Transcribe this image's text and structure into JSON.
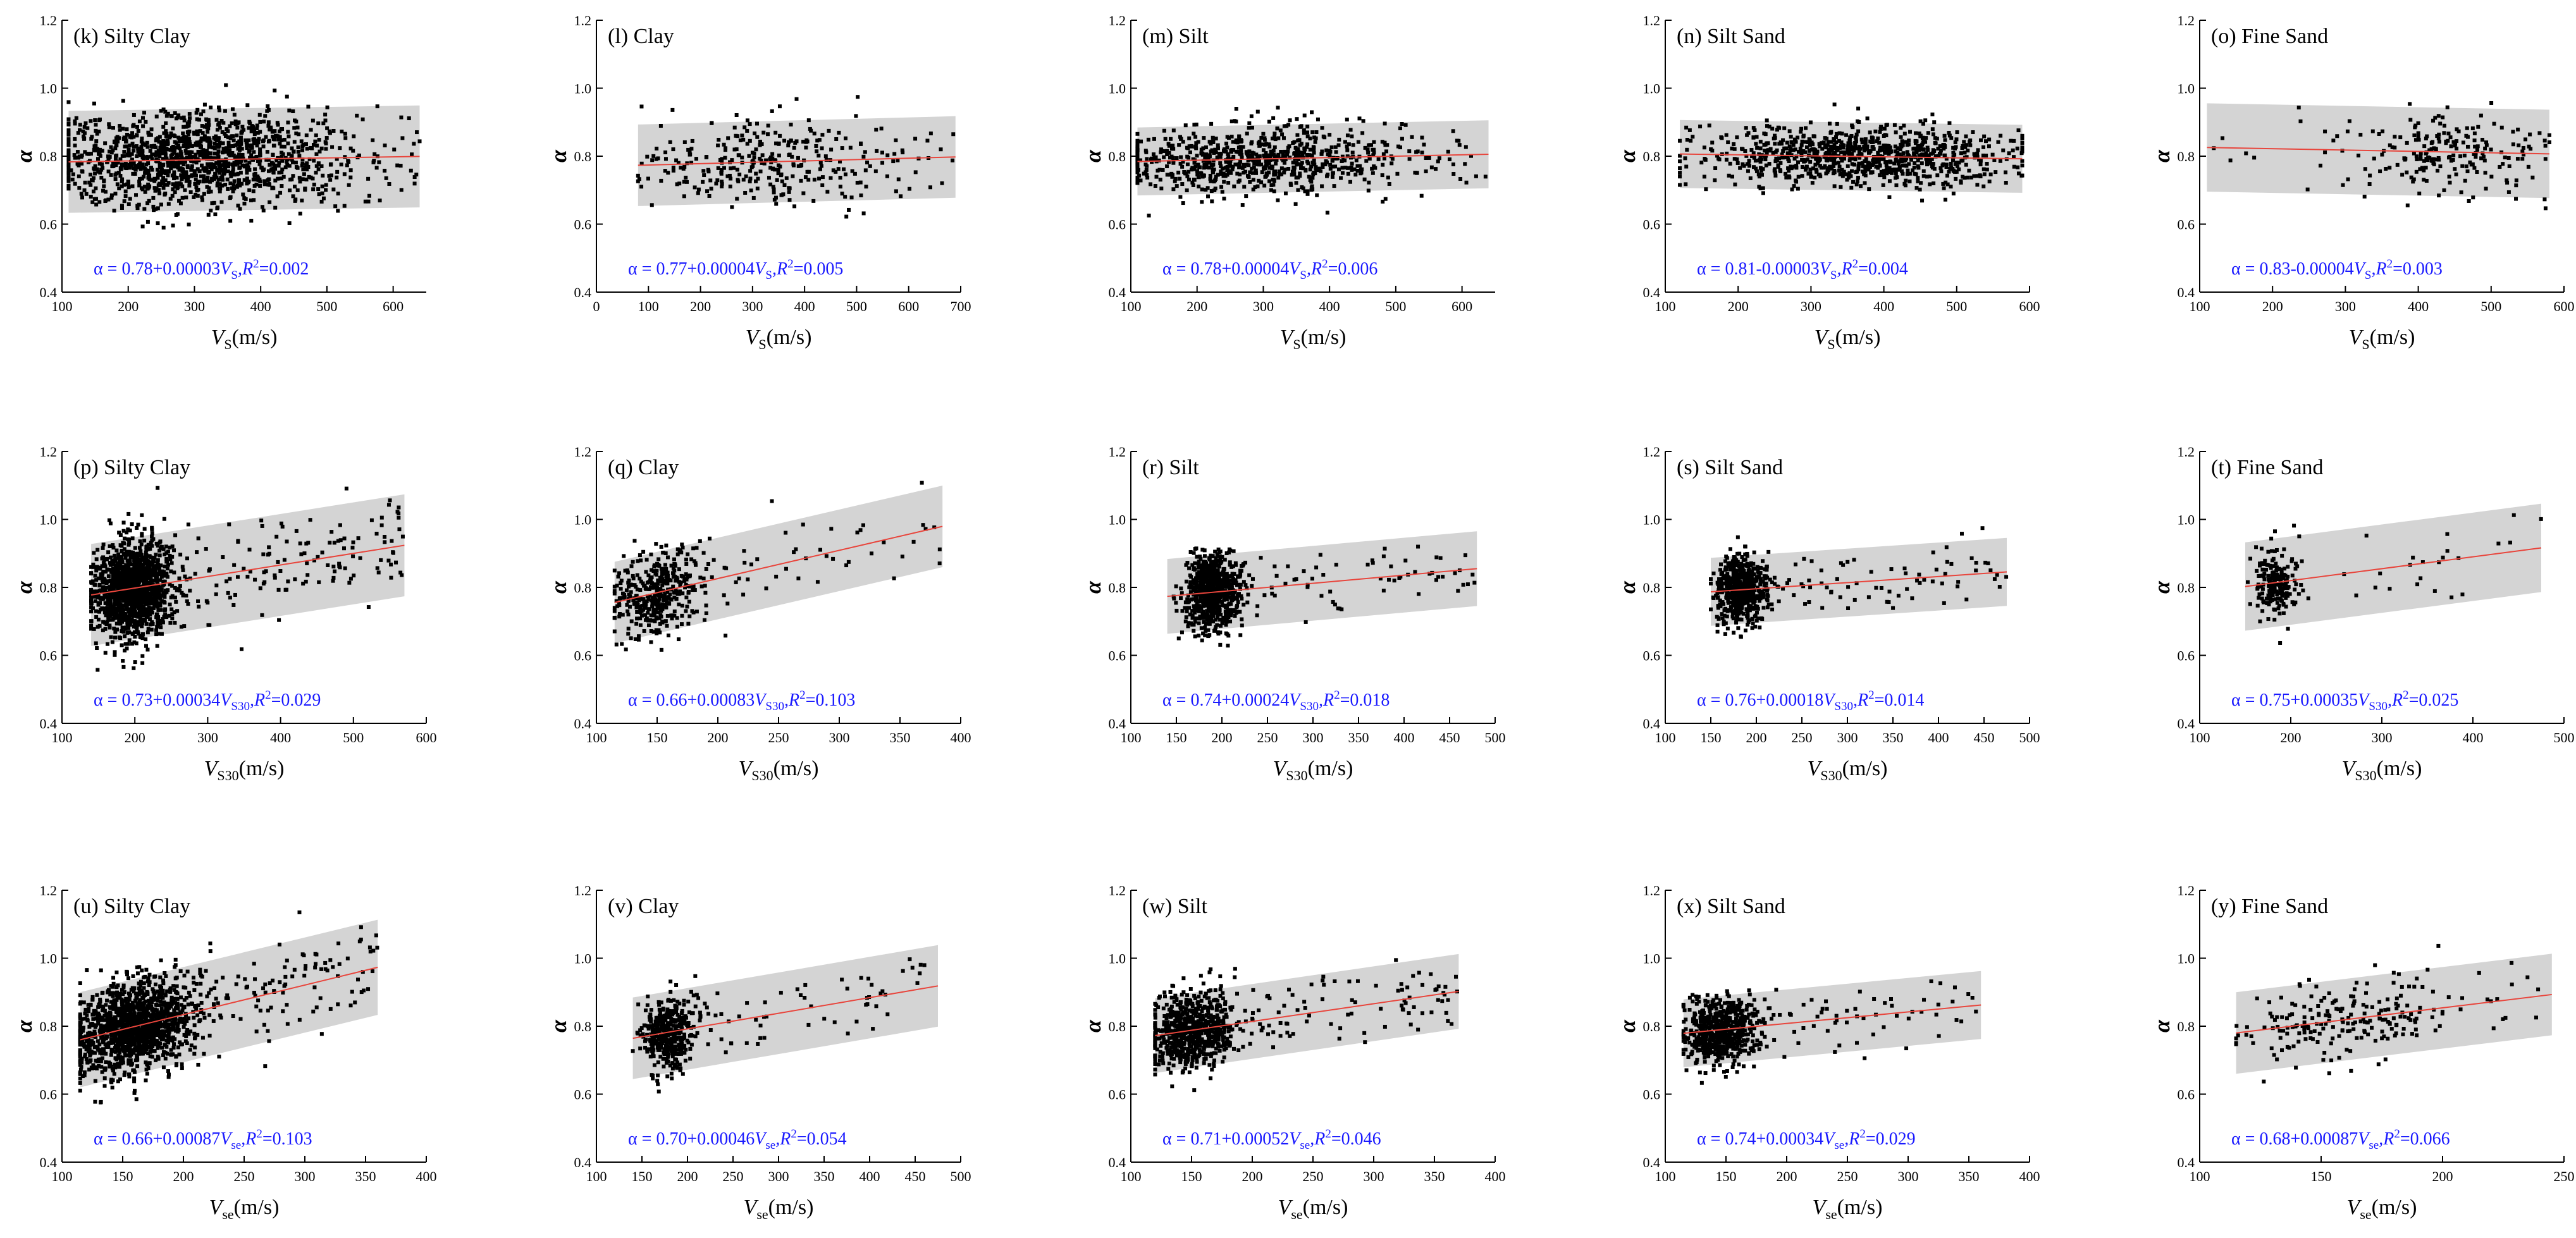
{
  "figure": {
    "ylabel": "α",
    "band_color": "#d4d4d4",
    "point_color": "#000000",
    "fit_color": "#e8453c",
    "equation_color": "#1a1aff"
  },
  "chart_data": [
    {
      "type": "scatter",
      "title": "(k) Silty Clay",
      "xlabel_main": "V",
      "xlabel_sub": "S",
      "xlabel_unit": "(m/s)",
      "xlim": [
        100,
        650
      ],
      "xticks": [
        100,
        200,
        300,
        400,
        500,
        600
      ],
      "ylim": [
        0.4,
        1.2
      ],
      "yticks": [
        0.4,
        0.6,
        0.8,
        1.0,
        1.2
      ],
      "fit": {
        "a": 0.78,
        "b": 3e-05
      },
      "band_halfwidth": 0.15,
      "x_range": [
        110,
        640
      ],
      "x_center": 300,
      "x_spread": 100,
      "n_points": 1400,
      "y_noise": 0.07,
      "equation": {
        "lead": "α = 0.78+0.00003",
        "v": "V",
        "sub": "S",
        "r": ",R",
        "sup": "2",
        "tail": "=0.002"
      }
    },
    {
      "type": "scatter",
      "title": "(l) Clay",
      "xlabel_main": "V",
      "xlabel_sub": "S",
      "xlabel_unit": "(m/s)",
      "xlim": [
        0,
        700
      ],
      "xticks": [
        0,
        100,
        200,
        300,
        400,
        500,
        600,
        700
      ],
      "ylim": [
        0.4,
        1.2
      ],
      "yticks": [
        0.4,
        0.6,
        0.8,
        1.0,
        1.2
      ],
      "fit": {
        "a": 0.77,
        "b": 4e-05
      },
      "band_halfwidth": 0.12,
      "x_range": [
        80,
        690
      ],
      "x_center": 320,
      "x_spread": 110,
      "n_points": 320,
      "y_noise": 0.06,
      "equation": {
        "lead": "α = 0.77+0.00004",
        "v": "V",
        "sub": "S",
        "r": ",R",
        "sup": "2",
        "tail": "=0.005"
      }
    },
    {
      "type": "scatter",
      "title": "(m) Silt",
      "xlabel_main": "V",
      "xlabel_sub": "S",
      "xlabel_unit": "(m/s)",
      "xlim": [
        100,
        650
      ],
      "xticks": [
        100,
        200,
        300,
        400,
        500,
        600
      ],
      "ylim": [
        0.4,
        1.2
      ],
      "yticks": [
        0.4,
        0.6,
        0.8,
        1.0,
        1.2
      ],
      "fit": {
        "a": 0.78,
        "b": 4e-05
      },
      "band_halfwidth": 0.1,
      "x_range": [
        110,
        640
      ],
      "x_center": 280,
      "x_spread": 110,
      "n_points": 800,
      "y_noise": 0.05,
      "equation": {
        "lead": "α = 0.78+0.00004",
        "v": "V",
        "sub": "S",
        "r": ",R",
        "sup": "2",
        "tail": "=0.006"
      }
    },
    {
      "type": "scatter",
      "title": "(n) Silt Sand",
      "xlabel_main": "V",
      "xlabel_sub": "S",
      "xlabel_unit": "(m/s)",
      "xlim": [
        100,
        600
      ],
      "xticks": [
        100,
        200,
        300,
        400,
        500,
        600
      ],
      "ylim": [
        0.4,
        1.2
      ],
      "yticks": [
        0.4,
        0.6,
        0.8,
        1.0,
        1.2
      ],
      "fit": {
        "a": 0.81,
        "b": -3e-05
      },
      "band_halfwidth": 0.1,
      "x_range": [
        120,
        590
      ],
      "x_center": 370,
      "x_spread": 100,
      "n_points": 900,
      "y_noise": 0.045,
      "equation": {
        "lead": "α = 0.81-0.00003",
        "v": "V",
        "sub": "S",
        "r": ",R",
        "sup": "2",
        "tail": "=0.004"
      }
    },
    {
      "type": "scatter",
      "title": "(o) Fine Sand",
      "xlabel_main": "V",
      "xlabel_sub": "S",
      "xlabel_unit": "(m/s)",
      "xlim": [
        100,
        600
      ],
      "xticks": [
        100,
        200,
        300,
        400,
        500,
        600
      ],
      "ylim": [
        0.4,
        1.2
      ],
      "yticks": [
        0.4,
        0.6,
        0.8,
        1.0,
        1.2
      ],
      "fit": {
        "a": 0.83,
        "b": -4e-05
      },
      "band_halfwidth": 0.13,
      "x_range": [
        110,
        580
      ],
      "x_center": 440,
      "x_spread": 70,
      "n_points": 220,
      "y_noise": 0.06,
      "equation": {
        "lead": "α = 0.83-0.00004",
        "v": "V",
        "sub": "S",
        "r": ",R",
        "sup": "2",
        "tail": "=0.003"
      }
    },
    {
      "type": "scatter",
      "title": "(p) Silty Clay",
      "xlabel_main": "V",
      "xlabel_sub": "S30",
      "xlabel_unit": "(m/s)",
      "xlim": [
        100,
        600
      ],
      "xticks": [
        100,
        200,
        300,
        400,
        500,
        600
      ],
      "ylim": [
        0.4,
        1.2
      ],
      "yticks": [
        0.4,
        0.6,
        0.8,
        1.0,
        1.2
      ],
      "fit": {
        "a": 0.73,
        "b": 0.00034
      },
      "band_halfwidth": 0.15,
      "x_range": [
        140,
        570
      ],
      "x_center": 195,
      "x_spread": 25,
      "n_points": 1500,
      "y_noise": 0.07,
      "equation": {
        "lead": "α = 0.73+0.00034",
        "v": "V",
        "sub": "S30",
        "r": ",R",
        "sup": "2",
        "tail": "=0.029"
      }
    },
    {
      "type": "scatter",
      "title": "(q) Clay",
      "xlabel_main": "V",
      "xlabel_sub": "S30",
      "xlabel_unit": "(m/s)",
      "xlim": [
        100,
        400
      ],
      "xticks": [
        100,
        150,
        200,
        250,
        300,
        350,
        400
      ],
      "ylim": [
        0.4,
        1.2
      ],
      "yticks": [
        0.4,
        0.6,
        0.8,
        1.0,
        1.2
      ],
      "fit": {
        "a": 0.66,
        "b": 0.00083
      },
      "band_halfwidth": 0.12,
      "x_range": [
        115,
        385
      ],
      "x_center": 150,
      "x_spread": 18,
      "n_points": 450,
      "y_noise": 0.06,
      "equation": {
        "lead": "α = 0.66+0.00083",
        "v": "V",
        "sub": "S30",
        "r": ",R",
        "sup": "2",
        "tail": "=0.103"
      }
    },
    {
      "type": "scatter",
      "title": "(r) Silt",
      "xlabel_main": "V",
      "xlabel_sub": "S30",
      "xlabel_unit": "(m/s)",
      "xlim": [
        100,
        500
      ],
      "xticks": [
        100,
        150,
        200,
        250,
        300,
        350,
        400,
        450,
        500
      ],
      "ylim": [
        0.4,
        1.2
      ],
      "yticks": [
        0.4,
        0.6,
        0.8,
        1.0,
        1.2
      ],
      "fit": {
        "a": 0.74,
        "b": 0.00024
      },
      "band_halfwidth": 0.11,
      "x_range": [
        140,
        480
      ],
      "x_center": 190,
      "x_spread": 15,
      "n_points": 800,
      "y_noise": 0.055,
      "equation": {
        "lead": "α = 0.74+0.00024",
        "v": "V",
        "sub": "S30",
        "r": ",R",
        "sup": "2",
        "tail": "=0.018"
      }
    },
    {
      "type": "scatter",
      "title": "(s) Silt Sand",
      "xlabel_main": "V",
      "xlabel_sub": "S30",
      "xlabel_unit": "(m/s)",
      "xlim": [
        100,
        500
      ],
      "xticks": [
        100,
        150,
        200,
        250,
        300,
        350,
        400,
        450,
        500
      ],
      "ylim": [
        0.4,
        1.2
      ],
      "yticks": [
        0.4,
        0.6,
        0.8,
        1.0,
        1.2
      ],
      "fit": {
        "a": 0.76,
        "b": 0.00018
      },
      "band_halfwidth": 0.1,
      "x_range": [
        150,
        475
      ],
      "x_center": 185,
      "x_spread": 15,
      "n_points": 650,
      "y_noise": 0.05,
      "equation": {
        "lead": "α = 0.76+0.00018",
        "v": "V",
        "sub": "S30",
        "r": ",R",
        "sup": "2",
        "tail": "=0.014"
      }
    },
    {
      "type": "scatter",
      "title": "(t) Fine Sand",
      "xlabel_main": "V",
      "xlabel_sub": "S30",
      "xlabel_unit": "(m/s)",
      "xlim": [
        100,
        500
      ],
      "xticks": [
        100,
        200,
        300,
        400,
        500
      ],
      "ylim": [
        0.4,
        1.2
      ],
      "yticks": [
        0.4,
        0.6,
        0.8,
        1.0,
        1.2
      ],
      "fit": {
        "a": 0.75,
        "b": 0.00035
      },
      "band_halfwidth": 0.13,
      "x_range": [
        150,
        475
      ],
      "x_center": 185,
      "x_spread": 12,
      "n_points": 220,
      "y_noise": 0.055,
      "equation": {
        "lead": "α = 0.75+0.00035",
        "v": "V",
        "sub": "S30",
        "r": ",R",
        "sup": "2",
        "tail": "=0.025"
      }
    },
    {
      "type": "scatter",
      "title": "(u) Silty Clay",
      "xlabel_main": "V",
      "xlabel_sub": "se",
      "xlabel_unit": "(m/s)",
      "xlim": [
        100,
        400
      ],
      "xticks": [
        100,
        150,
        200,
        250,
        300,
        350,
        400
      ],
      "ylim": [
        0.4,
        1.2
      ],
      "yticks": [
        0.4,
        0.6,
        0.8,
        1.0,
        1.2
      ],
      "fit": {
        "a": 0.66,
        "b": 0.00087
      },
      "band_halfwidth": 0.14,
      "x_range": [
        115,
        360
      ],
      "x_center": 160,
      "x_spread": 25,
      "n_points": 1500,
      "y_noise": 0.065,
      "equation": {
        "lead": "α = 0.66+0.00087",
        "v": "V",
        "sub": "se",
        "r": ",R",
        "sup": "2",
        "tail": "=0.103"
      }
    },
    {
      "type": "scatter",
      "title": "(v) Clay",
      "xlabel_main": "V",
      "xlabel_sub": "se",
      "xlabel_unit": "(m/s)",
      "xlim": [
        100,
        500
      ],
      "xticks": [
        100,
        150,
        200,
        250,
        300,
        350,
        400,
        450,
        500
      ],
      "ylim": [
        0.4,
        1.2
      ],
      "yticks": [
        0.4,
        0.6,
        0.8,
        1.0,
        1.2
      ],
      "fit": {
        "a": 0.7,
        "b": 0.00046
      },
      "band_halfwidth": 0.12,
      "x_range": [
        140,
        475
      ],
      "x_center": 180,
      "x_spread": 15,
      "n_points": 450,
      "y_noise": 0.055,
      "equation": {
        "lead": "α = 0.70+0.00046",
        "v": "V",
        "sub": "se",
        "r": ",R",
        "sup": "2",
        "tail": "=0.054"
      }
    },
    {
      "type": "scatter",
      "title": "(w) Silt",
      "xlabel_main": "V",
      "xlabel_sub": "se",
      "xlabel_unit": "(m/s)",
      "xlim": [
        100,
        400
      ],
      "xticks": [
        100,
        150,
        200,
        250,
        300,
        350,
        400
      ],
      "ylim": [
        0.4,
        1.2
      ],
      "yticks": [
        0.4,
        0.6,
        0.8,
        1.0,
        1.2
      ],
      "fit": {
        "a": 0.71,
        "b": 0.00052
      },
      "band_halfwidth": 0.11,
      "x_range": [
        120,
        370
      ],
      "x_center": 150,
      "x_spread": 18,
      "n_points": 800,
      "y_noise": 0.055,
      "equation": {
        "lead": "α = 0.71+0.00052",
        "v": "V",
        "sub": "se",
        "r": ",R",
        "sup": "2",
        "tail": "=0.046"
      }
    },
    {
      "type": "scatter",
      "title": "(x) Silt Sand",
      "xlabel_main": "V",
      "xlabel_sub": "se",
      "xlabel_unit": "(m/s)",
      "xlim": [
        100,
        400
      ],
      "xticks": [
        100,
        150,
        200,
        250,
        300,
        350,
        400
      ],
      "ylim": [
        0.4,
        1.2
      ],
      "yticks": [
        0.4,
        0.6,
        0.8,
        1.0,
        1.2
      ],
      "fit": {
        "a": 0.74,
        "b": 0.00034
      },
      "band_halfwidth": 0.1,
      "x_range": [
        115,
        360
      ],
      "x_center": 145,
      "x_spread": 15,
      "n_points": 650,
      "y_noise": 0.05,
      "equation": {
        "lead": "α = 0.74+0.00034",
        "v": "V",
        "sub": "se",
        "r": ",R",
        "sup": "2",
        "tail": "=0.029"
      }
    },
    {
      "type": "scatter",
      "title": "(y) Fine Sand",
      "xlabel_main": "V",
      "xlabel_sub": "se",
      "xlabel_unit": "(m/s)",
      "xlim": [
        100,
        250
      ],
      "xticks": [
        100,
        150,
        200,
        250
      ],
      "ylim": [
        0.4,
        1.2
      ],
      "yticks": [
        0.4,
        0.6,
        0.8,
        1.0,
        1.2
      ],
      "fit": {
        "a": 0.68,
        "b": 0.00087
      },
      "band_halfwidth": 0.12,
      "x_range": [
        115,
        245
      ],
      "x_center": 160,
      "x_spread": 22,
      "n_points": 220,
      "y_noise": 0.055,
      "equation": {
        "lead": "α = 0.68+0.00087",
        "v": "V",
        "sub": "se",
        "r": ",R",
        "sup": "2",
        "tail": "=0.066"
      }
    }
  ]
}
